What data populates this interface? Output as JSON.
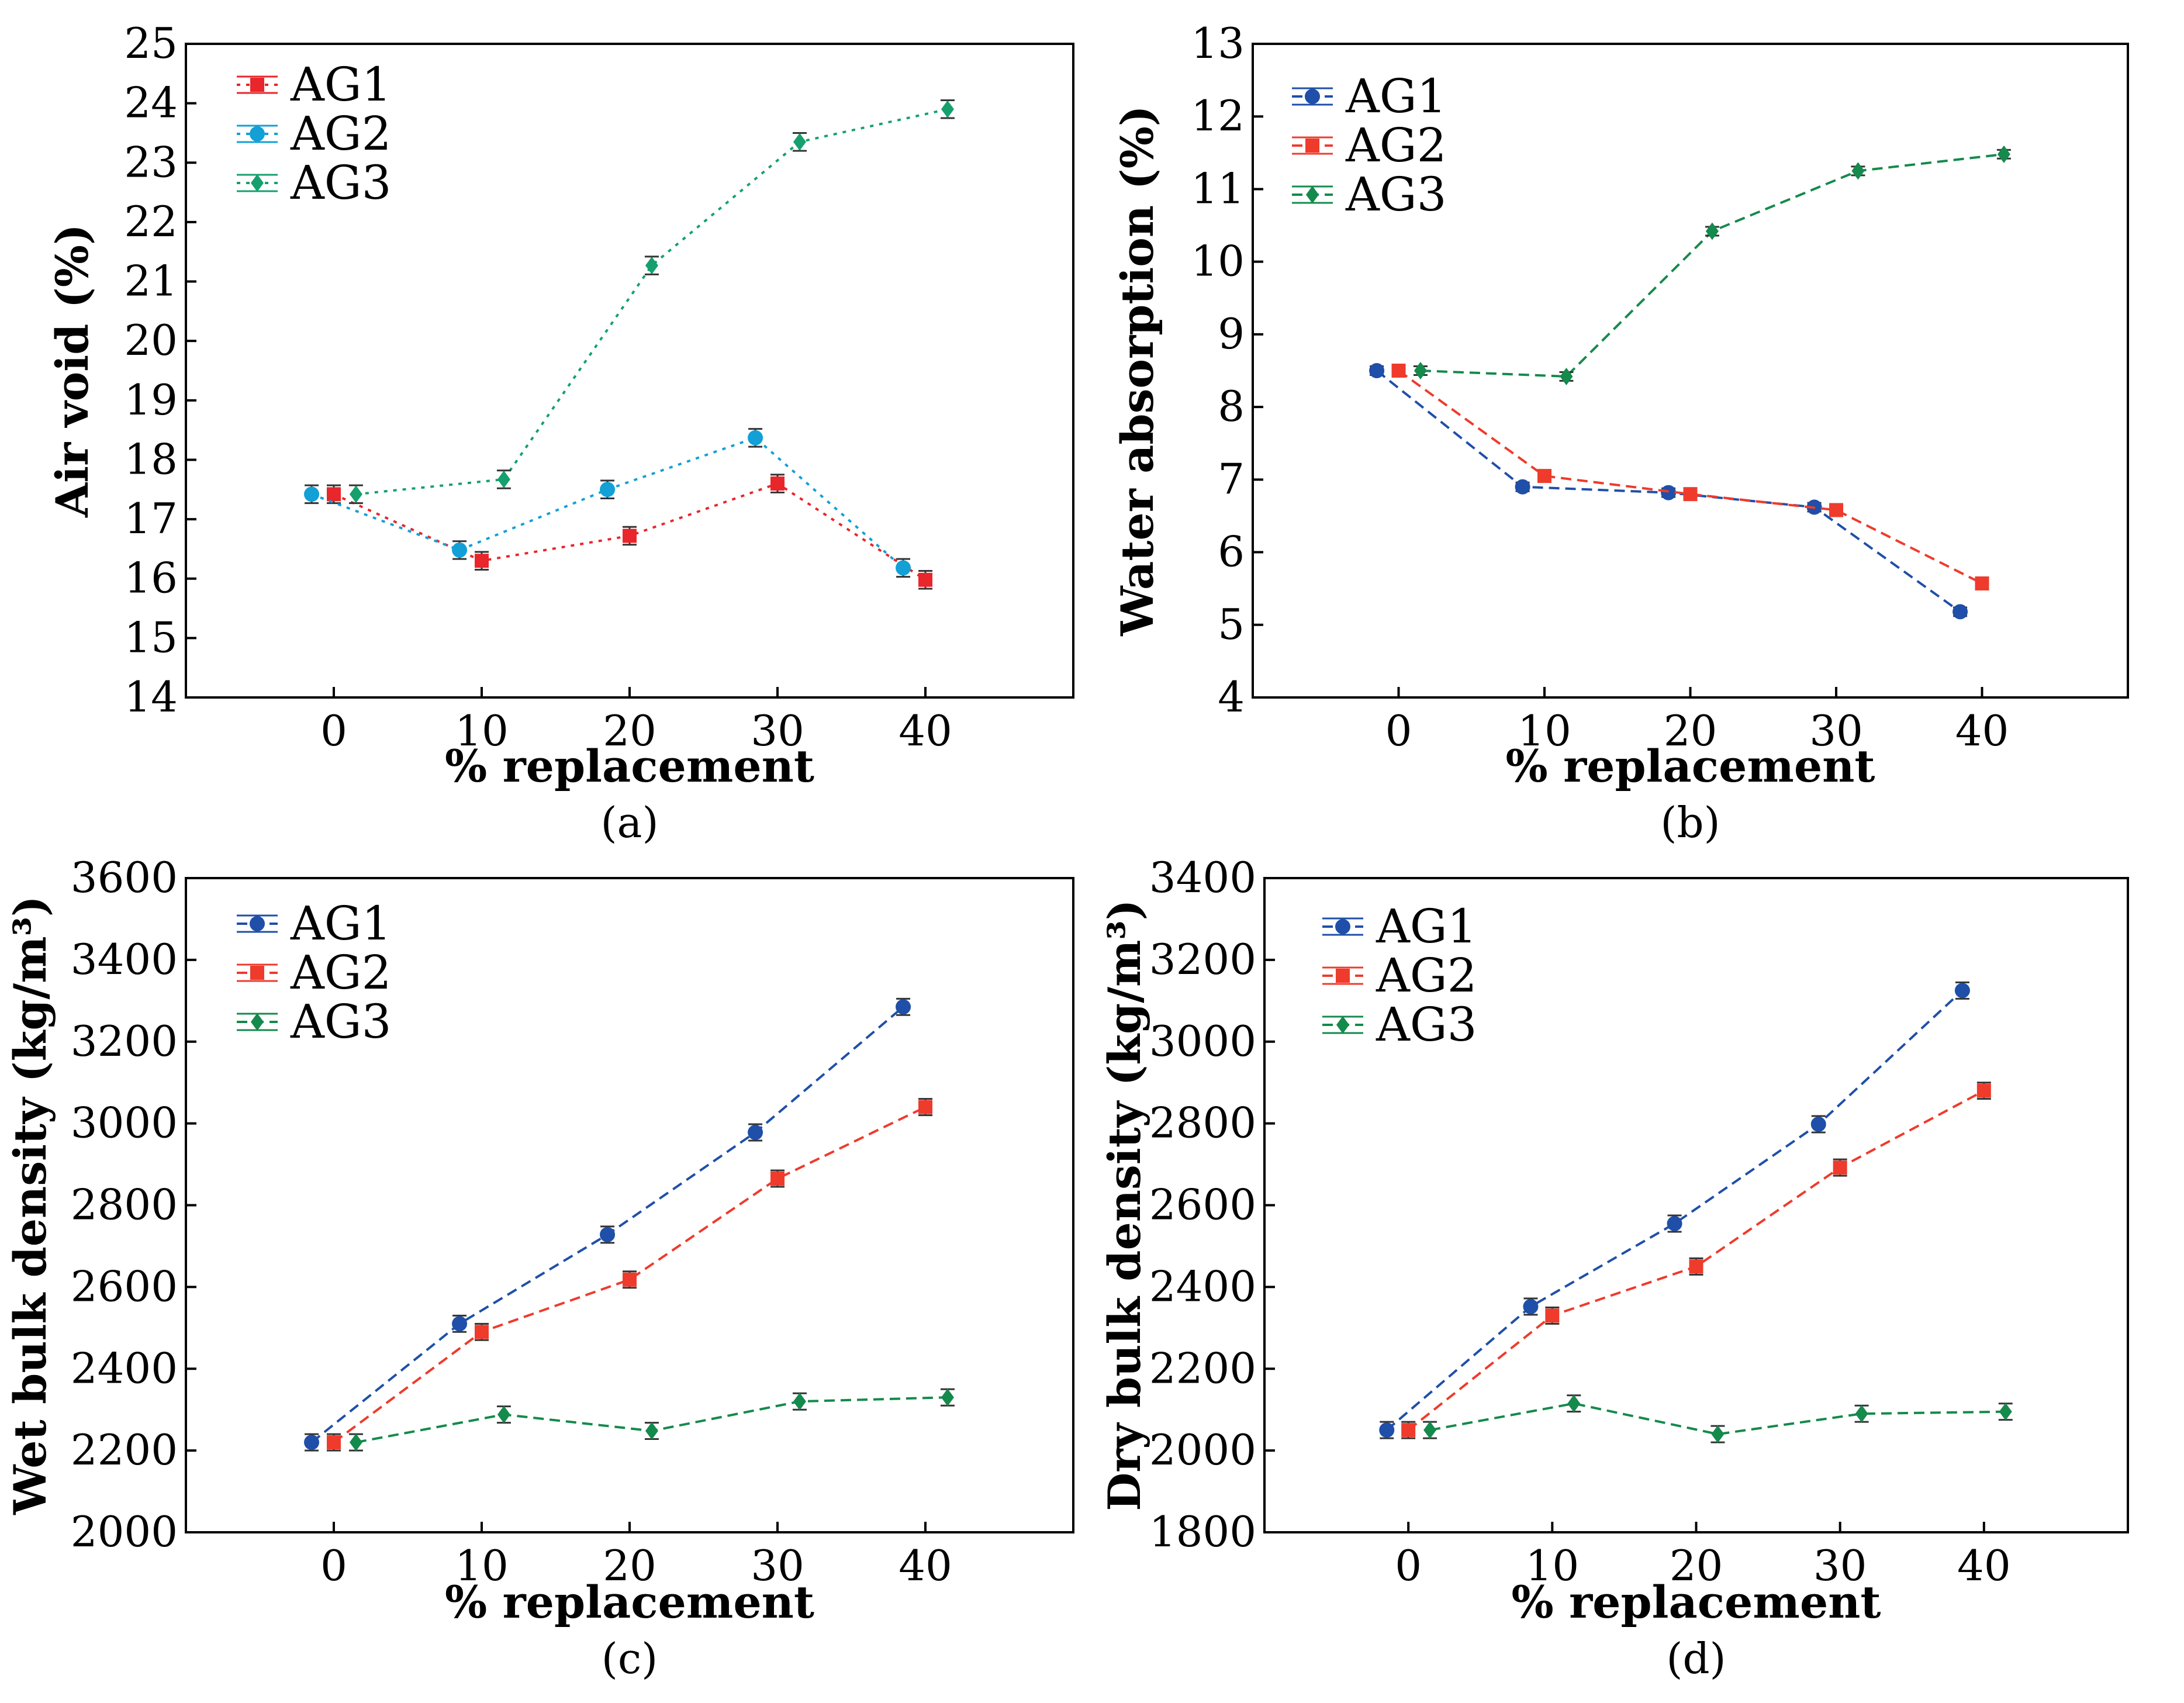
{
  "figure": {
    "panels": [
      {
        "id": "a",
        "caption": "(a)",
        "chart_data": {
          "type": "line",
          "title": "",
          "xlabel": "% replacement",
          "ylabel": "Air void (%)",
          "xlim": [
            -10,
            50
          ],
          "ylim": [
            14,
            25
          ],
          "yticks": [
            14,
            15,
            16,
            17,
            18,
            19,
            20,
            21,
            22,
            23,
            24,
            25
          ],
          "xticks": [
            0,
            10,
            20,
            30,
            40
          ],
          "legend_position": "top-left",
          "series": [
            {
              "name": "AG1",
              "color": "#e8262b",
              "marker": "square",
              "dash": "dotted",
              "x": [
                0,
                10,
                20,
                30,
                40
              ],
              "values": [
                17.42,
                16.3,
                16.72,
                17.6,
                15.98
              ],
              "error": [
                0.15,
                0.15,
                0.15,
                0.15,
                0.15
              ]
            },
            {
              "name": "AG2",
              "color": "#12a0d6",
              "marker": "circle",
              "dash": "dotted",
              "x": [
                -1.5,
                8.5,
                18.5,
                28.5,
                38.5
              ],
              "values": [
                17.42,
                16.48,
                17.5,
                18.37,
                16.18
              ],
              "error": [
                0.15,
                0.15,
                0.15,
                0.15,
                0.15
              ]
            },
            {
              "name": "AG3",
              "color": "#16a06e",
              "marker": "diamond",
              "dash": "dotted",
              "x": [
                1.5,
                11.5,
                21.5,
                31.5,
                41.5
              ],
              "values": [
                17.42,
                17.67,
                21.27,
                23.35,
                23.9
              ],
              "error": [
                0.15,
                0.15,
                0.15,
                0.15,
                0.15
              ]
            }
          ]
        }
      },
      {
        "id": "b",
        "caption": "(b)",
        "chart_data": {
          "type": "line",
          "title": "",
          "xlabel": "% replacement",
          "ylabel": "Water absorption (%)",
          "xlim": [
            -10,
            50
          ],
          "ylim": [
            4,
            13
          ],
          "yticks": [
            4,
            5,
            6,
            7,
            8,
            9,
            10,
            11,
            12,
            13
          ],
          "xticks": [
            0,
            10,
            20,
            30,
            40
          ],
          "legend_position": "top-left",
          "series": [
            {
              "name": "AG1",
              "color": "#1f4fa8",
              "marker": "circle",
              "dash": "dashed",
              "x": [
                -1.5,
                8.5,
                18.5,
                28.5,
                38.5
              ],
              "values": [
                8.5,
                6.9,
                6.82,
                6.62,
                5.18
              ],
              "error": [
                0.06,
                0.06,
                0.06,
                0.06,
                0.06
              ]
            },
            {
              "name": "AG2",
              "color": "#ee3b2c",
              "marker": "square",
              "dash": "dashed",
              "x": [
                0,
                10,
                20,
                30,
                40
              ],
              "values": [
                8.5,
                7.05,
                6.8,
                6.58,
                5.57
              ],
              "error": [
                0.06,
                0.06,
                0.06,
                0.06,
                0.06
              ]
            },
            {
              "name": "AG3",
              "color": "#148a4c",
              "marker": "diamond",
              "dash": "dashed",
              "x": [
                1.5,
                11.5,
                21.5,
                31.5,
                41.5
              ],
              "values": [
                8.5,
                8.42,
                10.42,
                11.25,
                11.48
              ],
              "error": [
                0.06,
                0.06,
                0.06,
                0.06,
                0.06
              ]
            }
          ]
        }
      },
      {
        "id": "c",
        "caption": "(c)",
        "chart_data": {
          "type": "line",
          "title": "",
          "xlabel": "% replacement",
          "ylabel": "Wet bulk density (kg/m³)",
          "xlim": [
            -10,
            50
          ],
          "ylim": [
            2000,
            3600
          ],
          "yticks": [
            2000,
            2200,
            2400,
            2600,
            2800,
            3000,
            3200,
            3400,
            3600
          ],
          "xticks": [
            0,
            10,
            20,
            30,
            40
          ],
          "legend_position": "top-left",
          "series": [
            {
              "name": "AG1",
              "color": "#1f4fa8",
              "marker": "circle",
              "dash": "dashed",
              "x": [
                -1.5,
                8.5,
                18.5,
                28.5,
                38.5
              ],
              "values": [
                2220,
                2510,
                2728,
                2978,
                3285
              ],
              "error": [
                20,
                20,
                20,
                20,
                20
              ]
            },
            {
              "name": "AG2",
              "color": "#ee3b2c",
              "marker": "square",
              "dash": "dashed",
              "x": [
                0,
                10,
                20,
                30,
                40
              ],
              "values": [
                2220,
                2490,
                2618,
                2865,
                3040
              ],
              "error": [
                20,
                20,
                20,
                20,
                20
              ]
            },
            {
              "name": "AG3",
              "color": "#148a4c",
              "marker": "diamond",
              "dash": "dashed",
              "x": [
                1.5,
                11.5,
                21.5,
                31.5,
                41.5
              ],
              "values": [
                2220,
                2288,
                2248,
                2320,
                2330
              ],
              "error": [
                20,
                20,
                20,
                20,
                20
              ]
            }
          ]
        }
      },
      {
        "id": "d",
        "caption": "(d)",
        "chart_data": {
          "type": "line",
          "title": "",
          "xlabel": "% replacement",
          "ylabel": "Dry bulk density (kg/m³)",
          "xlim": [
            -10,
            50
          ],
          "ylim": [
            1800,
            3400
          ],
          "yticks": [
            1800,
            2000,
            2200,
            2400,
            2600,
            2800,
            3000,
            3200,
            3400
          ],
          "xticks": [
            0,
            10,
            20,
            30,
            40
          ],
          "legend_position": "top-left",
          "series": [
            {
              "name": "AG1",
              "color": "#1f4fa8",
              "marker": "circle",
              "dash": "dashed",
              "x": [
                -1.5,
                8.5,
                18.5,
                28.5,
                38.5
              ],
              "values": [
                2050,
                2352,
                2555,
                2798,
                3125
              ],
              "error": [
                20,
                20,
                20,
                20,
                20
              ]
            },
            {
              "name": "AG2",
              "color": "#ee3b2c",
              "marker": "square",
              "dash": "dashed",
              "x": [
                0,
                10,
                20,
                30,
                40
              ],
              "values": [
                2050,
                2330,
                2450,
                2692,
                2880
              ],
              "error": [
                20,
                20,
                20,
                20,
                20
              ]
            },
            {
              "name": "AG3",
              "color": "#148a4c",
              "marker": "diamond",
              "dash": "dashed",
              "x": [
                1.5,
                11.5,
                21.5,
                31.5,
                41.5
              ],
              "values": [
                2050,
                2115,
                2040,
                2090,
                2095
              ],
              "error": [
                20,
                20,
                20,
                20,
                20
              ]
            }
          ]
        }
      }
    ]
  }
}
